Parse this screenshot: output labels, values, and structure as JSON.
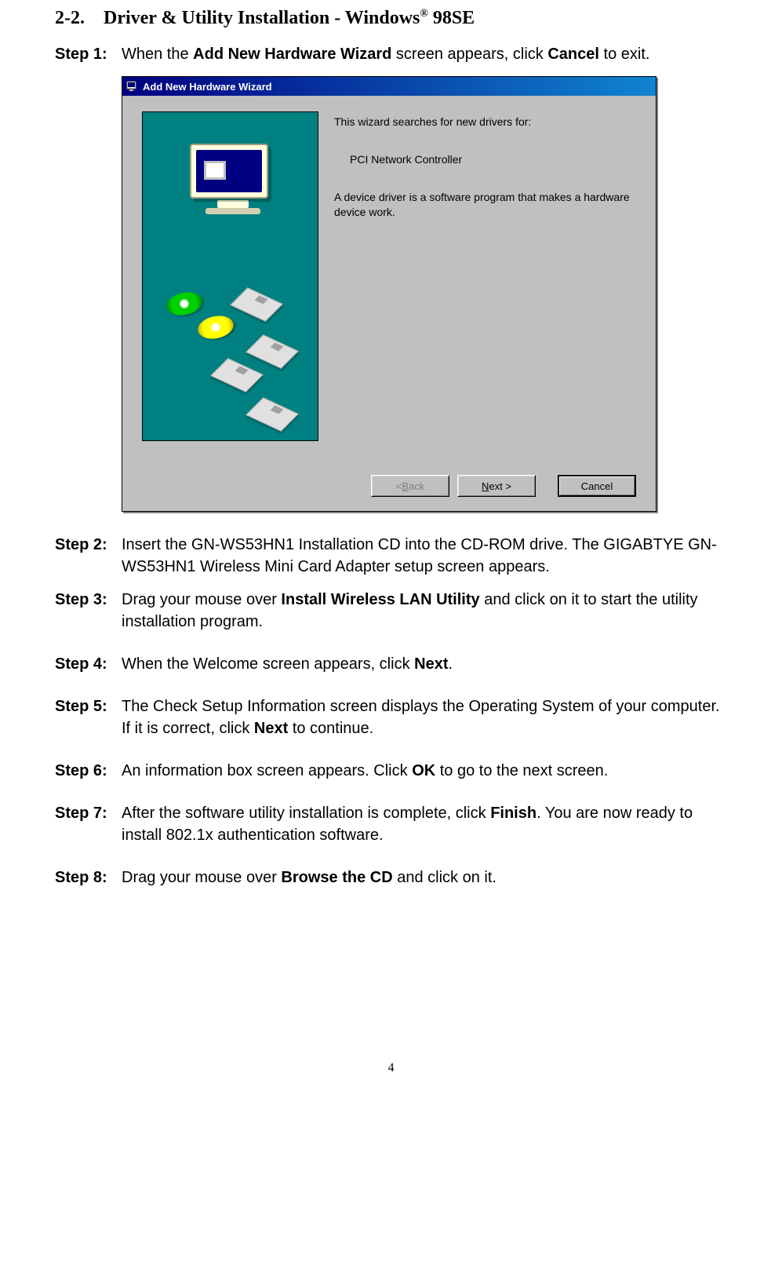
{
  "section": {
    "number": "2-2.",
    "title_pre": "Driver & Utility Installation - Windows",
    "title_sup": "®",
    "title_post": " 98SE"
  },
  "steps": [
    {
      "label": "Step 1:",
      "parts": [
        {
          "t": "When the "
        },
        {
          "t": "Add New Hardware Wizard",
          "b": true
        },
        {
          "t": " screen appears, click "
        },
        {
          "t": "Cancel",
          "b": true
        },
        {
          "t": " to exit."
        }
      ]
    },
    {
      "label": "Step 2:",
      "parts": [
        {
          "t": "Insert the GN-WS53HN1 Installation CD into the CD-ROM drive. The GIGABTYE GN-WS53HN1 Wireless Mini Card Adapter setup screen appears."
        }
      ]
    },
    {
      "label": "Step 3:",
      "parts": [
        {
          "t": "Drag your mouse over "
        },
        {
          "t": "Install Wireless LAN Utility",
          "b": true
        },
        {
          "t": " and click on it to start the utility installation program."
        }
      ]
    },
    {
      "label": "Step 4:",
      "parts": [
        {
          "t": "When the Welcome screen appears, click "
        },
        {
          "t": "Next",
          "b": true
        },
        {
          "t": "."
        }
      ]
    },
    {
      "label": "Step 5:",
      "parts": [
        {
          "t": "The Check Setup Information screen displays the Operating System of your computer. If it is correct, click "
        },
        {
          "t": "Next",
          "b": true
        },
        {
          "t": " to continue."
        }
      ]
    },
    {
      "label": "Step 6:",
      "parts": [
        {
          "t": "An information box screen appears. Click "
        },
        {
          "t": "OK",
          "b": true
        },
        {
          "t": " to go to the next screen."
        }
      ]
    },
    {
      "label": "Step 7:",
      "parts": [
        {
          "t": "After the software utility installation is complete, click "
        },
        {
          "t": "Finish",
          "b": true
        },
        {
          "t": ".    You are now ready to install 802.1x authentication software."
        }
      ]
    },
    {
      "label": "Step 8:",
      "parts": [
        {
          "t": "Drag your mouse over "
        },
        {
          "t": "Browse the CD",
          "b": true
        },
        {
          "t": " and click on it."
        }
      ]
    }
  ],
  "screenshot": {
    "title": "Add New Hardware Wizard",
    "line1": "This wizard searches for new drivers for:",
    "device": "PCI Network Controller",
    "line2": "A device driver is a software program that makes a hardware device work.",
    "buttons": {
      "back_hotkey": "B",
      "back_pre": "< ",
      "back_rest": "ack",
      "next_hotkey": "N",
      "next_rest": "ext >",
      "cancel": "Cancel"
    }
  },
  "page": "4"
}
